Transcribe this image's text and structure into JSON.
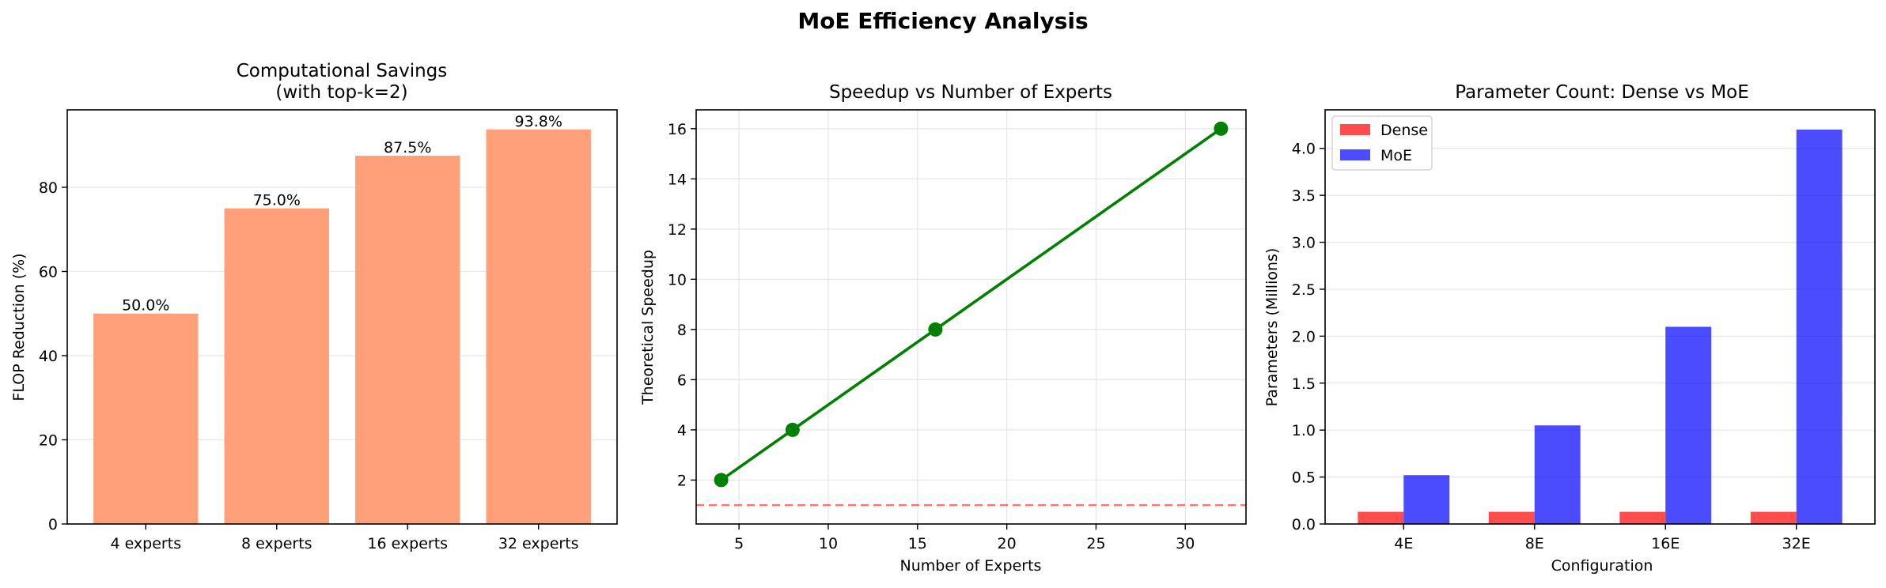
{
  "figure": {
    "suptitle": "MoE Efficiency Analysis"
  },
  "chart_data": [
    {
      "type": "bar",
      "title_line1": "Computational Savings",
      "title_line2": "(with top-k=2)",
      "xlabel": "",
      "ylabel": "FLOP Reduction (%)",
      "categories": [
        "4 experts",
        "8 experts",
        "16 experts",
        "32 experts"
      ],
      "values": [
        50.0,
        75.0,
        87.5,
        93.75
      ],
      "value_labels": [
        "50.0%",
        "75.0%",
        "87.5%",
        "93.8%"
      ],
      "yticks": [
        0,
        20,
        40,
        60,
        80
      ],
      "ylim": [
        0,
        98.4
      ],
      "color": "#ffa07a",
      "grid": "y"
    },
    {
      "type": "line",
      "title": "Speedup vs Number of Experts",
      "xlabel": "Number of Experts",
      "ylabel": "Theoretical Speedup",
      "x": [
        4,
        8,
        16,
        32
      ],
      "y": [
        2,
        4,
        8,
        16
      ],
      "xticks": [
        5,
        10,
        15,
        20,
        25,
        30
      ],
      "yticks": [
        2,
        4,
        6,
        8,
        10,
        12,
        14,
        16
      ],
      "xlim": [
        2.6,
        33.4
      ],
      "ylim": [
        0.25,
        16.75
      ],
      "reference_line": {
        "y": 1,
        "color": "#ff0000",
        "style": "dashed"
      },
      "color": "#008000",
      "grid": "both"
    },
    {
      "type": "bar",
      "title": "Parameter Count: Dense vs MoE",
      "xlabel": "Configuration",
      "ylabel": "Parameters (Millions)",
      "categories": [
        "4E",
        "8E",
        "16E",
        "32E"
      ],
      "series": [
        {
          "name": "Dense",
          "values": [
            0.13,
            0.13,
            0.13,
            0.13
          ],
          "color": "#ff0000"
        },
        {
          "name": "MoE",
          "values": [
            0.52,
            1.05,
            2.1,
            4.2
          ],
          "color": "#0000ff"
        }
      ],
      "yticks": [
        0.0,
        0.5,
        1.0,
        1.5,
        2.0,
        2.5,
        3.0,
        3.5,
        4.0
      ],
      "ytick_labels": [
        "0.0",
        "0.5",
        "1.0",
        "1.5",
        "2.0",
        "2.5",
        "3.0",
        "3.5",
        "4.0"
      ],
      "ylim": [
        0,
        4.41
      ],
      "legend": "top-left",
      "grid": "y"
    }
  ]
}
